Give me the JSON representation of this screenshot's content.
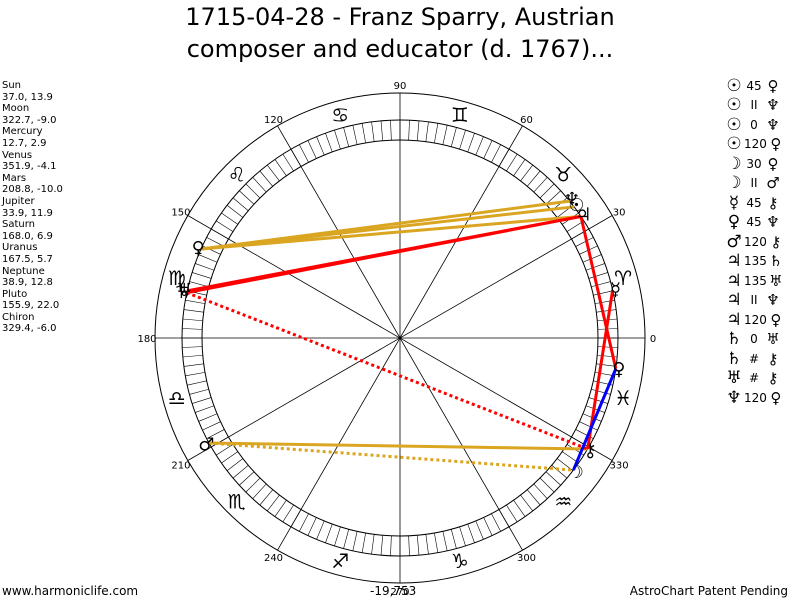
{
  "header": {
    "title_line1": "1715-04-28 - Franz Sparry, Austrian",
    "title_line2": "composer and educator (d. 1767)..."
  },
  "planets": [
    {
      "name": "Sun",
      "coords": "37.0, 13.9",
      "glyph": "☉"
    },
    {
      "name": "Moon",
      "coords": "322.7, -9.0",
      "glyph": "☽"
    },
    {
      "name": "Mercury",
      "coords": "12.7, 2.9",
      "glyph": "☿"
    },
    {
      "name": "Venus",
      "coords": "351.9, -4.1",
      "glyph": "♀"
    },
    {
      "name": "Mars",
      "coords": "208.8, -10.0",
      "glyph": "♂"
    },
    {
      "name": "Jupiter",
      "coords": "33.9, 11.9",
      "glyph": "♃"
    },
    {
      "name": "Saturn",
      "coords": "168.0, 6.9",
      "glyph": "♄"
    },
    {
      "name": "Uranus",
      "coords": "167.5, 5.7",
      "glyph": "♅"
    },
    {
      "name": "Neptune",
      "coords": "38.9, 12.8",
      "glyph": "♆"
    },
    {
      "name": "Pluto",
      "coords": "155.9, 22.0",
      "glyph": "♀"
    },
    {
      "name": "Chiron",
      "coords": "329.4, -6.0",
      "glyph": "⚷"
    }
  ],
  "aspects": [
    {
      "p1": "☉",
      "aspect": "45",
      "p2": "♀"
    },
    {
      "p1": "☉",
      "aspect": "II",
      "p2": "♆"
    },
    {
      "p1": "☉",
      "aspect": "0",
      "p2": "♆"
    },
    {
      "p1": "☉",
      "aspect": "120",
      "p2": "♀"
    },
    {
      "p1": "☽",
      "aspect": "30",
      "p2": "♀"
    },
    {
      "p1": "☽",
      "aspect": "II",
      "p2": "♂"
    },
    {
      "p1": "☿",
      "aspect": "45",
      "p2": "⚷"
    },
    {
      "p1": "♀",
      "aspect": "45",
      "p2": "♆"
    },
    {
      "p1": "♂",
      "aspect": "120",
      "p2": "⚷"
    },
    {
      "p1": "♃",
      "aspect": "135",
      "p2": "♄"
    },
    {
      "p1": "♃",
      "aspect": "135",
      "p2": "♅"
    },
    {
      "p1": "♃",
      "aspect": "II",
      "p2": "♆"
    },
    {
      "p1": "♃",
      "aspect": "120",
      "p2": "♀"
    },
    {
      "p1": "♄",
      "aspect": "0",
      "p2": "♅"
    },
    {
      "p1": "♄",
      "aspect": "#",
      "p2": "⚷"
    },
    {
      "p1": "♅",
      "aspect": "#",
      "p2": "⚷"
    },
    {
      "p1": "♆",
      "aspect": "120",
      "p2": "♀"
    }
  ],
  "wheel": {
    "degree_labels": [
      "0",
      "30",
      "60",
      "90",
      "120",
      "150",
      "180",
      "210",
      "240",
      "270",
      "300",
      "330"
    ],
    "sign_glyphs": [
      {
        "sign": "Aries",
        "glyph": "♈",
        "lon": 15
      },
      {
        "sign": "Taurus",
        "glyph": "♉",
        "lon": 45
      },
      {
        "sign": "Gemini",
        "glyph": "♊",
        "lon": 75
      },
      {
        "sign": "Cancer",
        "glyph": "♋",
        "lon": 105
      },
      {
        "sign": "Leo",
        "glyph": "♌",
        "lon": 135
      },
      {
        "sign": "Virgo",
        "glyph": "♍",
        "lon": 165
      },
      {
        "sign": "Libra",
        "glyph": "♎",
        "lon": 195
      },
      {
        "sign": "Scorpio",
        "glyph": "♏",
        "lon": 225
      },
      {
        "sign": "Sagittarius",
        "glyph": "♐",
        "lon": 255
      },
      {
        "sign": "Capricorn",
        "glyph": "♑",
        "lon": 285
      },
      {
        "sign": "Aquarius",
        "glyph": "♒",
        "lon": 315
      },
      {
        "sign": "Pisces",
        "glyph": "♓",
        "lon": 345
      }
    ],
    "aspect_lines": [
      {
        "from": "Sun",
        "to": "Pluto",
        "color": "#daa520",
        "style": "solid"
      },
      {
        "from": "Neptune",
        "to": "Pluto",
        "color": "#daa520",
        "style": "solid"
      },
      {
        "from": "Jupiter",
        "to": "Pluto",
        "color": "#daa520",
        "style": "solid"
      },
      {
        "from": "Mars",
        "to": "Chiron",
        "color": "#daa520",
        "style": "solid"
      },
      {
        "from": "Mars",
        "to": "Moon",
        "color": "#daa520",
        "style": "dotted"
      },
      {
        "from": "Jupiter",
        "to": "Saturn",
        "color": "#ff0000",
        "style": "solid"
      },
      {
        "from": "Jupiter",
        "to": "Uranus",
        "color": "#ff0000",
        "style": "solid"
      },
      {
        "from": "Jupiter",
        "to": "Venus",
        "color": "#ff0000",
        "style": "solid"
      },
      {
        "from": "Mercury",
        "to": "Chiron",
        "color": "#ff0000",
        "style": "solid"
      },
      {
        "from": "Saturn",
        "to": "Chiron",
        "color": "#ff0000",
        "style": "dotted"
      },
      {
        "from": "Venus",
        "to": "Moon",
        "color": "#0000ff",
        "style": "solid"
      }
    ]
  },
  "footer": {
    "left": "www.harmoniclife.com",
    "center": "-19,753",
    "right": "AstroChart Patent Pending"
  }
}
